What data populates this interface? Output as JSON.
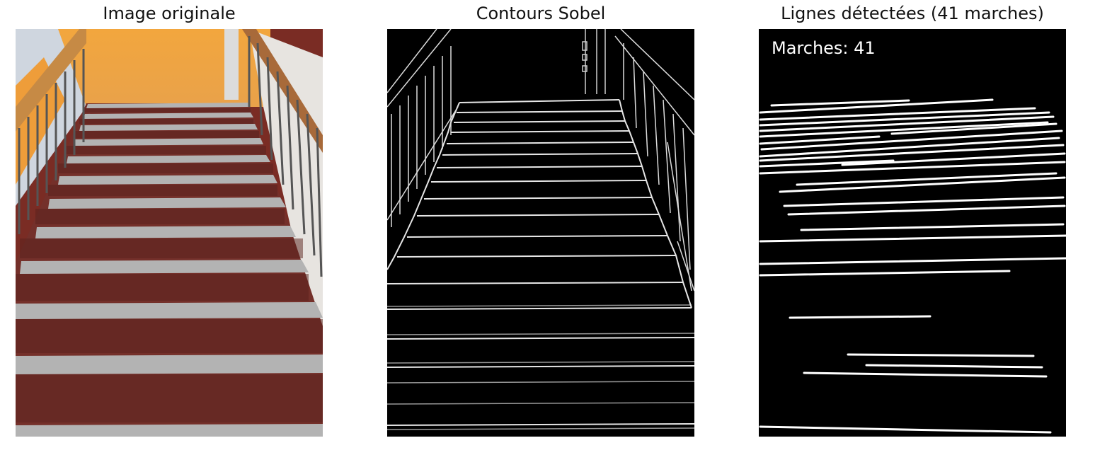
{
  "panels": [
    {
      "title": "Image originale"
    },
    {
      "title": "Contours Sobel"
    },
    {
      "title": "Lignes détectées (41 marches)",
      "overlay_text": "Marches: 41"
    }
  ],
  "colors": {
    "wall_orange": "#f0a23c",
    "step_red": "#6e2a22",
    "nosing_gray": "#a9a9a9",
    "edge_white": "#ffffff",
    "background_black": "#000000"
  }
}
